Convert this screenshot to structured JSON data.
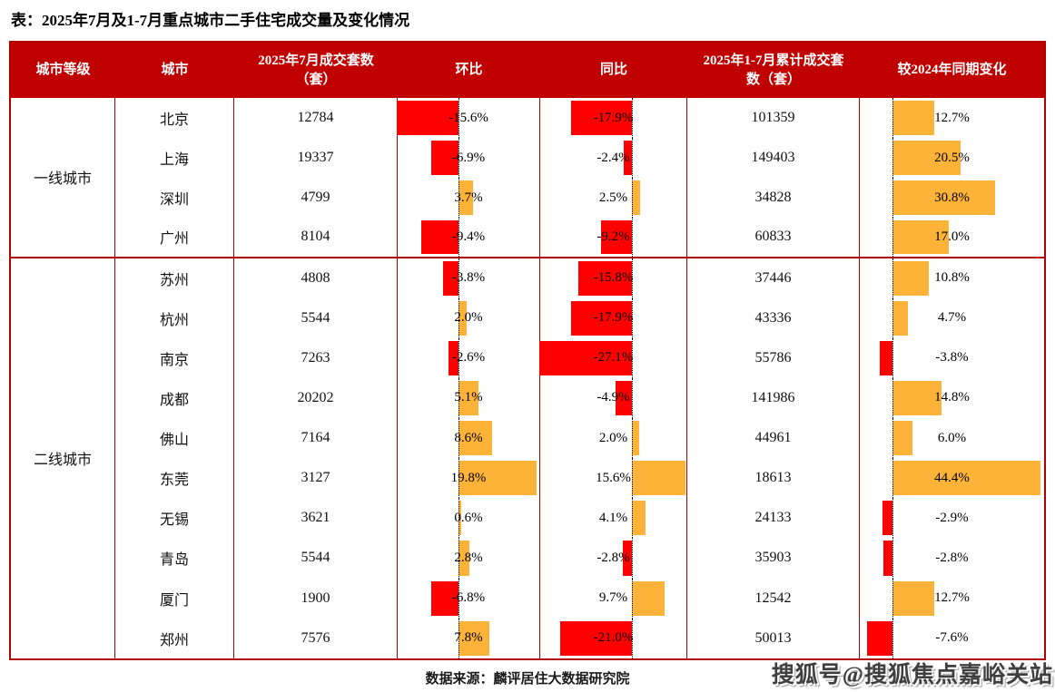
{
  "colors": {
    "header_bg": "#C00000",
    "table_border": "#B00000",
    "negative_bar": "#FF0000",
    "positive_bar": "#FDB338"
  },
  "footer": {
    "source": "数据来源：麟评居住大数据研究院",
    "watermark": "搜狐号@搜狐焦点嘉峪关站"
  },
  "chart_data": {
    "type": "table",
    "title": "表：2025年7月及1-7月重点城市二手住宅成交量及变化情况",
    "columns": [
      "城市等级",
      "城市",
      "2025年7月成交套数（套）",
      "环比",
      "同比",
      "2025年1-7月累计成交套数（套）",
      "较2024年同期变化"
    ],
    "bar_columns": [
      "环比",
      "同比",
      "较2024年同期变化"
    ],
    "bar_color_rule": "negative=red, positive=orange, dotted zero axis per column",
    "groups": [
      {
        "tier": "一线城市",
        "rows": [
          {
            "city": "北京",
            "jul": "12784",
            "mom": "-15.6%",
            "yoy": "-17.9%",
            "cum": "101359",
            "vs2024": "12.7%"
          },
          {
            "city": "上海",
            "jul": "19337",
            "mom": "-6.9%",
            "yoy": "-2.4%",
            "cum": "149403",
            "vs2024": "20.5%"
          },
          {
            "city": "深圳",
            "jul": "4799",
            "mom": "3.7%",
            "yoy": "2.5%",
            "cum": "34828",
            "vs2024": "30.8%"
          },
          {
            "city": "广州",
            "jul": "8104",
            "mom": "-9.4%",
            "yoy": "-9.2%",
            "cum": "60833",
            "vs2024": "17.0%"
          }
        ]
      },
      {
        "tier": "二线城市",
        "rows": [
          {
            "city": "苏州",
            "jul": "4808",
            "mom": "-3.8%",
            "yoy": "-15.8%",
            "cum": "37446",
            "vs2024": "10.8%"
          },
          {
            "city": "杭州",
            "jul": "5544",
            "mom": "2.0%",
            "yoy": "-17.9%",
            "cum": "43336",
            "vs2024": "4.7%"
          },
          {
            "city": "南京",
            "jul": "7263",
            "mom": "-2.6%",
            "yoy": "-27.1%",
            "cum": "55786",
            "vs2024": "-3.8%"
          },
          {
            "city": "成都",
            "jul": "20202",
            "mom": "5.1%",
            "yoy": "-4.9%",
            "cum": "141986",
            "vs2024": "14.8%"
          },
          {
            "city": "佛山",
            "jul": "7164",
            "mom": "8.6%",
            "yoy": "2.0%",
            "cum": "44961",
            "vs2024": "6.0%"
          },
          {
            "city": "东莞",
            "jul": "3127",
            "mom": "19.8%",
            "yoy": "15.6%",
            "cum": "18613",
            "vs2024": "44.4%"
          },
          {
            "city": "无锡",
            "jul": "3621",
            "mom": "0.6%",
            "yoy": "4.1%",
            "cum": "24133",
            "vs2024": "-2.9%"
          },
          {
            "city": "青岛",
            "jul": "5544",
            "mom": "2.8%",
            "yoy": "-2.8%",
            "cum": "35903",
            "vs2024": "-2.8%"
          },
          {
            "city": "厦门",
            "jul": "1900",
            "mom": "-6.8%",
            "yoy": "9.7%",
            "cum": "12542",
            "vs2024": "12.7%"
          },
          {
            "city": "郑州",
            "jul": "7576",
            "mom": "7.8%",
            "yoy": "-21.0%",
            "cum": "50013",
            "vs2024": "-7.6%"
          }
        ]
      }
    ]
  }
}
